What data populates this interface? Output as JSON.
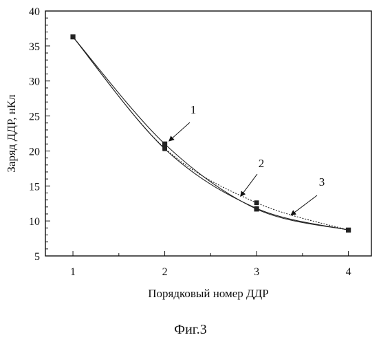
{
  "chart_data": {
    "type": "line",
    "title": "",
    "xlabel": "Порядковый номер ДДР",
    "ylabel": "Заряд ДДР, нКл",
    "x": [
      1,
      2,
      3,
      4
    ],
    "xlim": [
      0.7,
      4.25
    ],
    "ylim": [
      5,
      40
    ],
    "xticks": [
      "1",
      "2",
      "3",
      "4"
    ],
    "yticks": [
      "5",
      "10",
      "15",
      "20",
      "25",
      "30",
      "35",
      "40"
    ],
    "grid": false,
    "series": [
      {
        "name": "1",
        "values": [
          36.3,
          21.0,
          11.7,
          8.7
        ],
        "style": "solid"
      },
      {
        "name": "2",
        "values": [
          36.3,
          20.3,
          11.8,
          8.7
        ],
        "style": "solid"
      },
      {
        "name": "3",
        "values": [
          36.3,
          20.4,
          12.6,
          8.7
        ],
        "style": "dotted"
      }
    ]
  },
  "caption": "Фиг.3"
}
